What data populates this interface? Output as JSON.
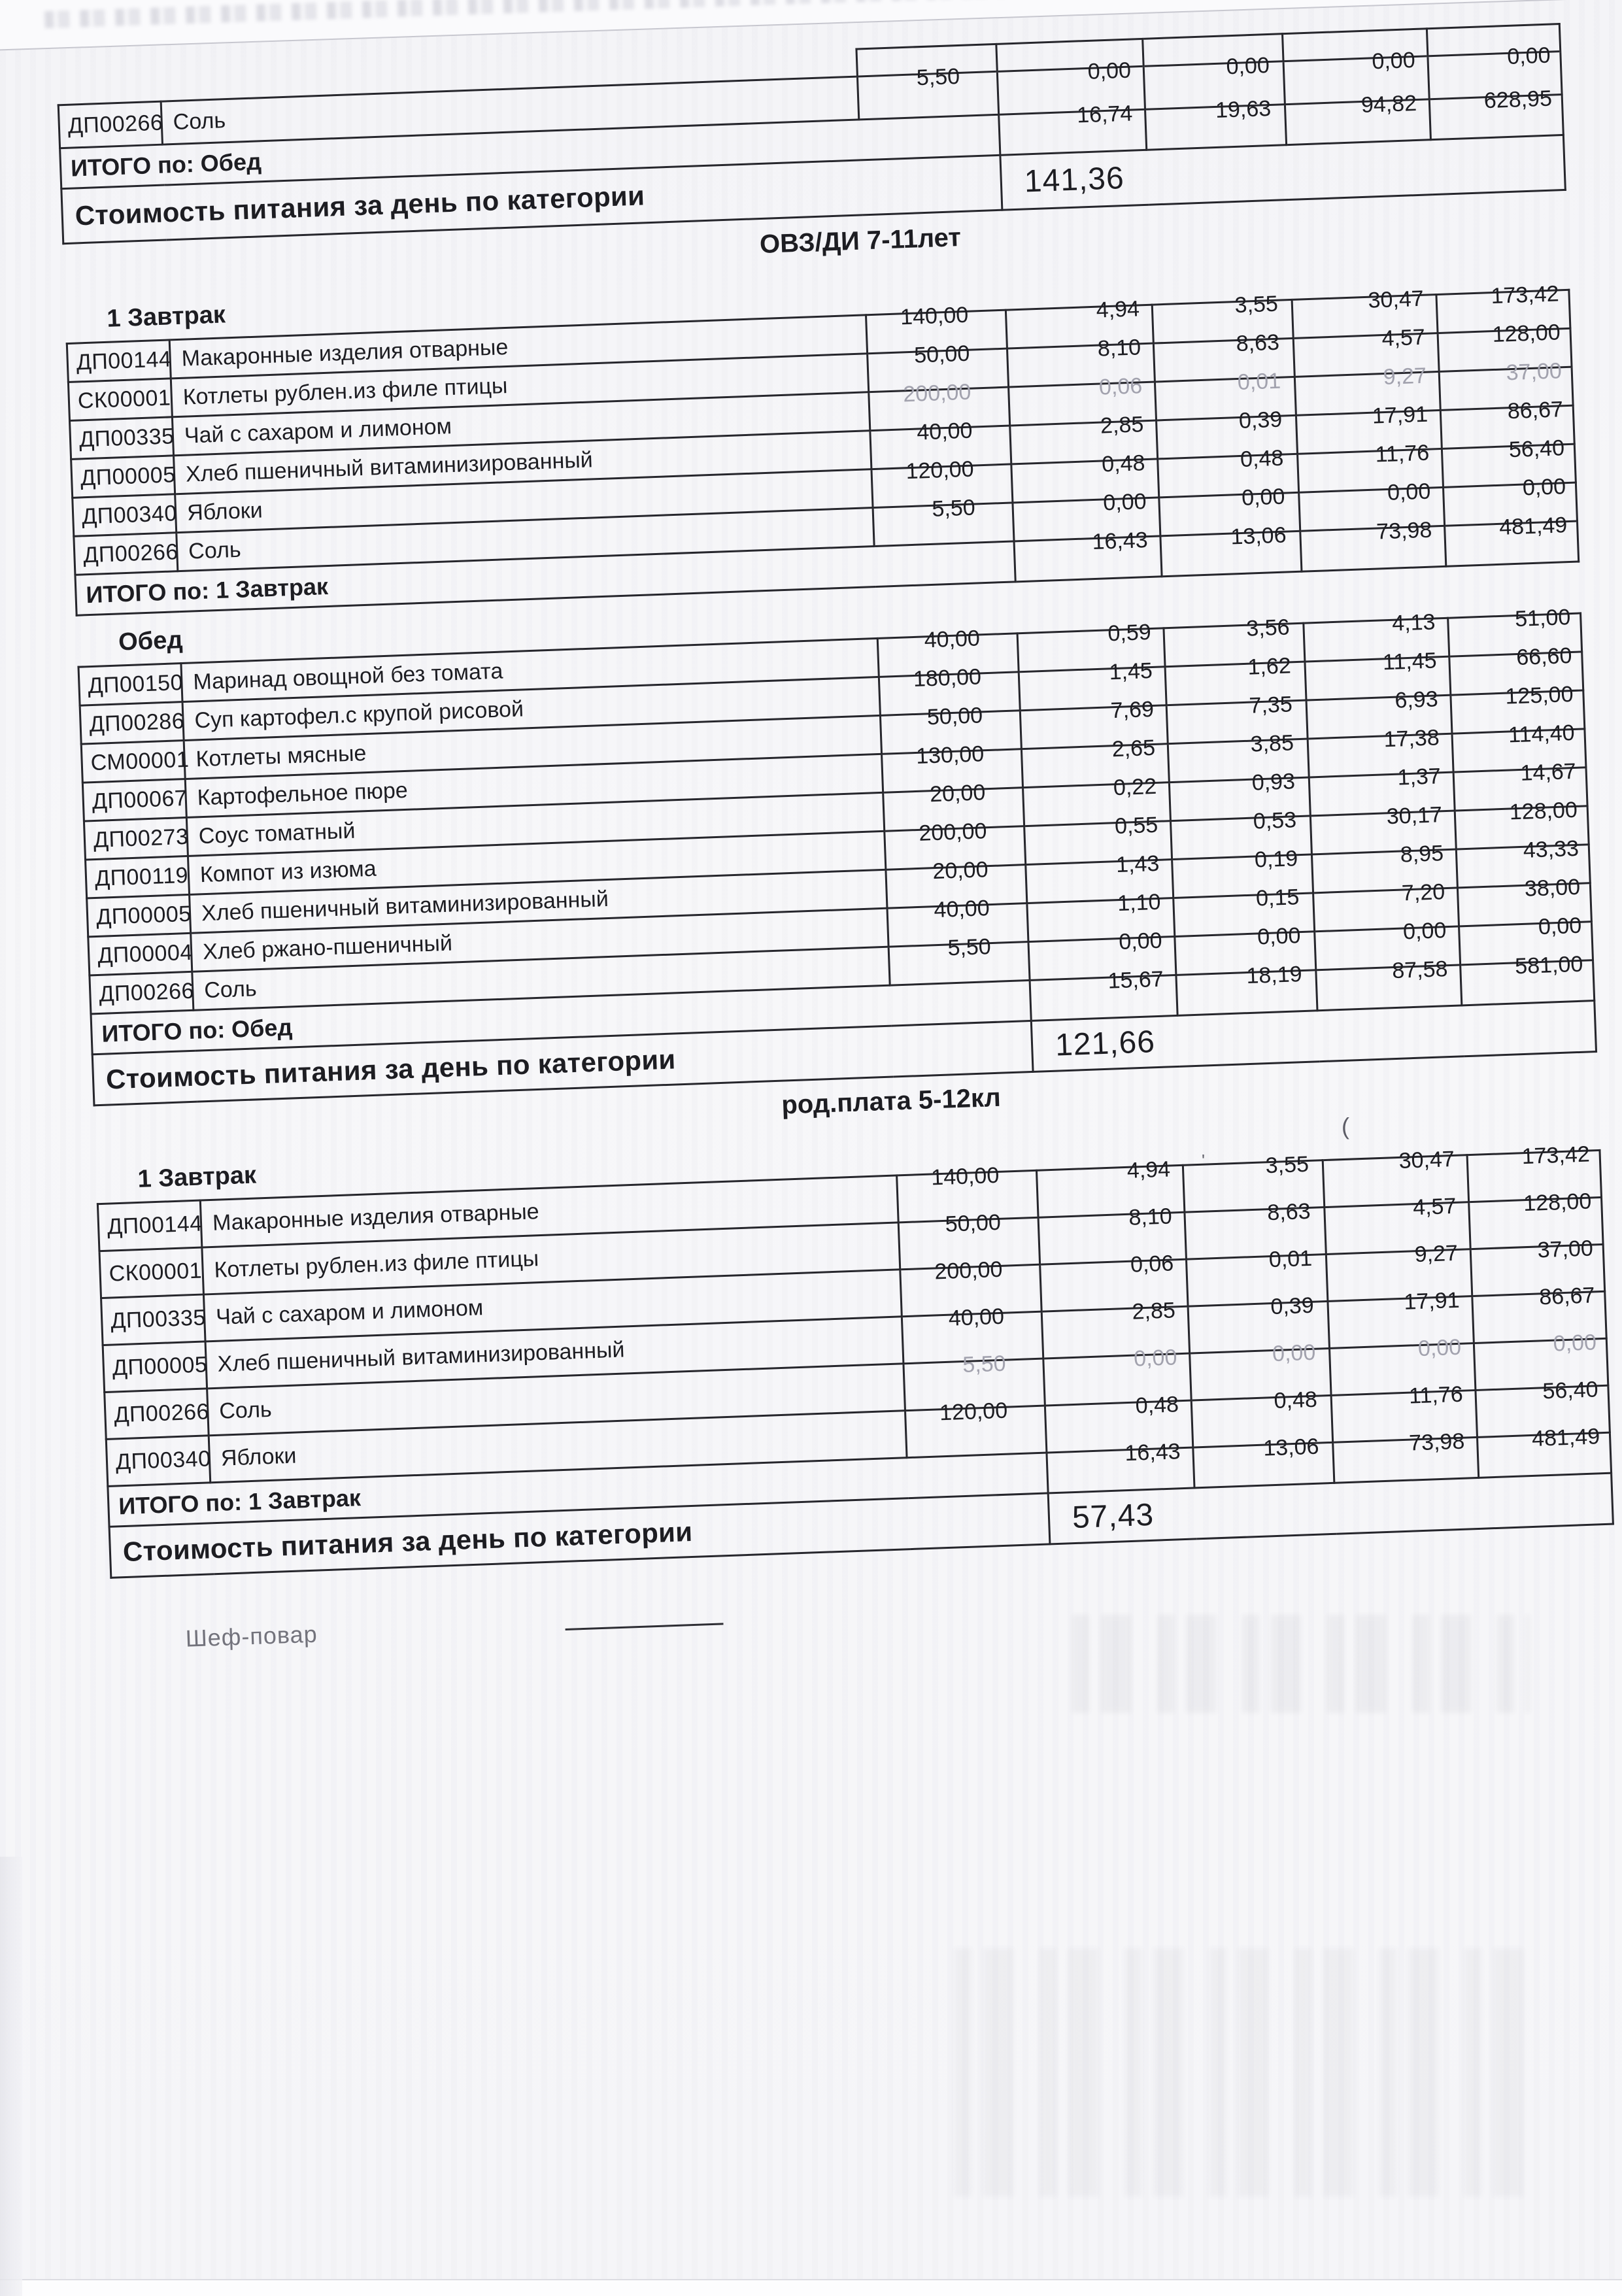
{
  "titles": {
    "category1": "ОВЗ/ДИ 7-11лет",
    "category2": "род.плата 5-12кл"
  },
  "signature": {
    "label": "Шеф-повар"
  },
  "artifacts": {
    "stray_mark_1": "(",
    "stray_mark_2": "'"
  },
  "tables": [
    {
      "header": null,
      "partial_top": true,
      "rows": [
        {
          "code": "ДП00266",
          "name": "Соль",
          "values": [
            "5,50",
            "0,00",
            "0,00",
            "0,00",
            "0,00"
          ],
          "faint": false
        }
      ],
      "totals": {
        "label": "ИТОГО по: Обед",
        "values": [
          "16,74",
          "19,63",
          "94,82",
          "628,95"
        ]
      },
      "cost": {
        "label": "Стоимость питания за день по категории",
        "value": "141,36"
      }
    },
    {
      "header": "1 Завтрак",
      "partial_top": false,
      "rows": [
        {
          "code": "ДП00144",
          "name": "Макаронные изделия отварные",
          "values": [
            "140,00",
            "4,94",
            "3,55",
            "30,47",
            "173,42"
          ],
          "faint": false
        },
        {
          "code": "СК00001",
          "name": "Котлеты рублен.из филе птицы",
          "values": [
            "50,00",
            "8,10",
            "8,63",
            "4,57",
            "128,00"
          ],
          "faint": false
        },
        {
          "code": "ДП00335",
          "name": "Чай с сахаром и  лимоном",
          "values": [
            "200,00",
            "0,06",
            "0,01",
            "9,27",
            "37,00"
          ],
          "faint": true
        },
        {
          "code": "ДП00005",
          "name": "Хлеб пшеничный витаминизированный",
          "values": [
            "40,00",
            "2,85",
            "0,39",
            "17,91",
            "86,67"
          ],
          "faint": false
        },
        {
          "code": "ДП00340",
          "name": "Яблоки",
          "values": [
            "120,00",
            "0,48",
            "0,48",
            "11,76",
            "56,40"
          ],
          "faint": false
        },
        {
          "code": "ДП00266",
          "name": "Соль",
          "values": [
            "5,50",
            "0,00",
            "0,00",
            "0,00",
            "0,00"
          ],
          "faint": false
        }
      ],
      "totals": {
        "label": "ИТОГО по: 1 Завтрак",
        "values": [
          "16,43",
          "13,06",
          "73,98",
          "481,49"
        ]
      },
      "cost": null
    },
    {
      "header": "Обед",
      "partial_top": false,
      "rows": [
        {
          "code": "ДП00150",
          "name": "Маринад овощной без томата",
          "values": [
            "40,00",
            "0,59",
            "3,56",
            "4,13",
            "51,00"
          ],
          "faint": false
        },
        {
          "code": "ДП00286",
          "name": "Суп картофел.с крупой рисовой",
          "values": [
            "180,00",
            "1,45",
            "1,62",
            "11,45",
            "66,60"
          ],
          "faint": false
        },
        {
          "code": "СМ00001",
          "name": "Котлеты мясные",
          "values": [
            "50,00",
            "7,69",
            "7,35",
            "6,93",
            "125,00"
          ],
          "faint": false
        },
        {
          "code": "ДП00067",
          "name": "Картофельное пюре",
          "values": [
            "130,00",
            "2,65",
            "3,85",
            "17,38",
            "114,40"
          ],
          "faint": false
        },
        {
          "code": "ДП00273",
          "name": "Соус томатный",
          "values": [
            "20,00",
            "0,22",
            "0,93",
            "1,37",
            "14,67"
          ],
          "faint": false
        },
        {
          "code": "ДП00119",
          "name": "Компот из изюма",
          "values": [
            "200,00",
            "0,55",
            "0,53",
            "30,17",
            "128,00"
          ],
          "faint": false
        },
        {
          "code": "ДП00005",
          "name": "Хлеб пшеничный витаминизированный",
          "values": [
            "20,00",
            "1,43",
            "0,19",
            "8,95",
            "43,33"
          ],
          "faint": false
        },
        {
          "code": "ДП00004",
          "name": "Хлеб ржано-пшеничный",
          "values": [
            "40,00",
            "1,10",
            "0,15",
            "7,20",
            "38,00"
          ],
          "faint": false
        },
        {
          "code": "ДП00266",
          "name": "Соль",
          "values": [
            "5,50",
            "0,00",
            "0,00",
            "0,00",
            "0,00"
          ],
          "faint": false
        }
      ],
      "totals": {
        "label": "ИТОГО по: Обед",
        "values": [
          "15,67",
          "18,19",
          "87,58",
          "581,00"
        ]
      },
      "cost": {
        "label": "Стоимость питания за день по категории",
        "value": "121,66"
      }
    },
    {
      "header": "1 Завтрак",
      "partial_top": false,
      "rows": [
        {
          "code": "ДП00144",
          "name": "Макаронные изделия отварные",
          "values": [
            "140,00",
            "4,94",
            "3,55",
            "30,47",
            "173,42"
          ],
          "faint": false
        },
        {
          "code": "СК00001",
          "name": "Котлеты рублен.из филе птицы",
          "values": [
            "50,00",
            "8,10",
            "8,63",
            "4,57",
            "128,00"
          ],
          "faint": false
        },
        {
          "code": "ДП00335",
          "name": "Чай с сахаром и  лимоном",
          "values": [
            "200,00",
            "0,06",
            "0,01",
            "9,27",
            "37,00"
          ],
          "faint": false
        },
        {
          "code": "ДП00005",
          "name": "Хлеб пшеничный витаминизированный",
          "values": [
            "40,00",
            "2,85",
            "0,39",
            "17,91",
            "86,67"
          ],
          "faint": false
        },
        {
          "code": "ДП00266",
          "name": "Соль",
          "values": [
            "5,50",
            "0,00",
            "0,00",
            "0,00",
            "0,00"
          ],
          "faint": true
        },
        {
          "code": "ДП00340",
          "name": "Яблоки",
          "values": [
            "120,00",
            "0,48",
            "0,48",
            "11,76",
            "56,40"
          ],
          "faint": false
        }
      ],
      "totals": {
        "label": "ИТОГО по: 1 Завтрак",
        "values": [
          "16,43",
          "13,06",
          "73,98",
          "481,49"
        ]
      },
      "cost": {
        "label": "Стоимость питания за день по категории",
        "value": "57,43"
      }
    }
  ]
}
